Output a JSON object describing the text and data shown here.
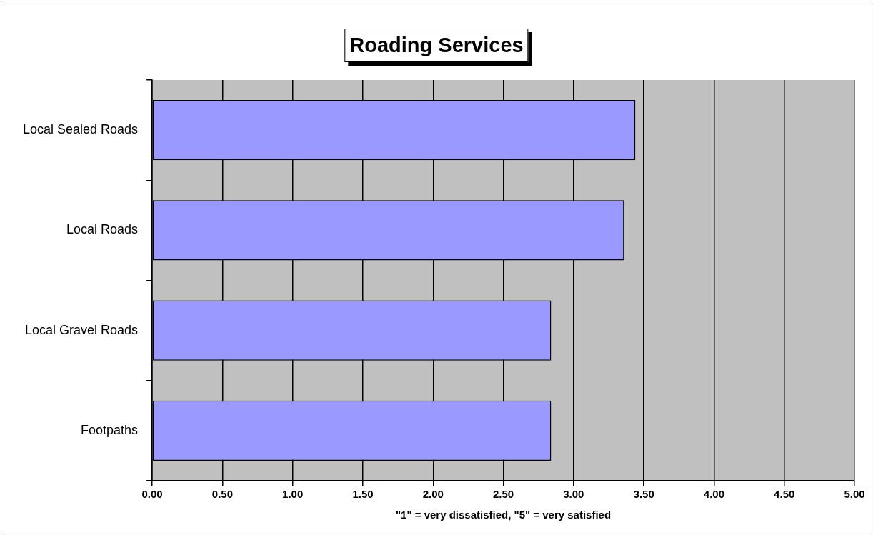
{
  "chart_data": {
    "type": "bar",
    "orientation": "horizontal",
    "title": "Roading Services",
    "xlabel": "\"1\" = very dissatisfied, \"5\" = very satisfied",
    "categories": [
      "Local Sealed Roads",
      "Local Roads",
      "Local Gravel Roads",
      "Footpaths"
    ],
    "values": [
      3.44,
      3.36,
      2.84,
      2.84
    ],
    "color": "#9999ff",
    "xlim": [
      0,
      5
    ],
    "xticks": [
      {
        "value": 0,
        "label": "0.00"
      },
      {
        "value": 0.5,
        "label": "0.50"
      },
      {
        "value": 1,
        "label": "1.00"
      },
      {
        "value": 1.5,
        "label": "1.50"
      },
      {
        "value": 2,
        "label": "2.00"
      },
      {
        "value": 2.5,
        "label": "2.50"
      },
      {
        "value": 3,
        "label": "3.00"
      },
      {
        "value": 3.5,
        "label": "3.50"
      },
      {
        "value": 4,
        "label": "4.00"
      },
      {
        "value": 4.5,
        "label": "4.50"
      },
      {
        "value": 5,
        "label": "5.00"
      }
    ],
    "grid": "x",
    "legend": false
  }
}
